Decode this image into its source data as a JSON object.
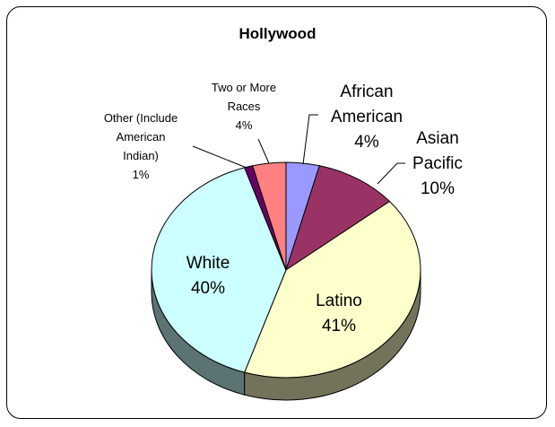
{
  "chart_data": {
    "type": "pie",
    "title": "Hollywood",
    "three_d": true,
    "slices": [
      {
        "label": [
          "African",
          "American"
        ],
        "value_label": "4%",
        "value": 4,
        "color": "#9999ff"
      },
      {
        "label": [
          "Asian",
          "Pacific"
        ],
        "value_label": "10%",
        "value": 10,
        "color": "#993366"
      },
      {
        "label": [
          "Latino"
        ],
        "value_label": "41%",
        "value": 41,
        "color": "#ffffcc"
      },
      {
        "label": [
          "White"
        ],
        "value_label": "40%",
        "value": 40,
        "color": "#ccffff"
      },
      {
        "label": [
          "Other (Include",
          "American",
          "Indian)"
        ],
        "value_label": "1%",
        "value": 1,
        "color": "#660066"
      },
      {
        "label": [
          "Two or More",
          "Races"
        ],
        "value_label": "4%",
        "value": 4,
        "color": "#ff8080"
      }
    ]
  }
}
